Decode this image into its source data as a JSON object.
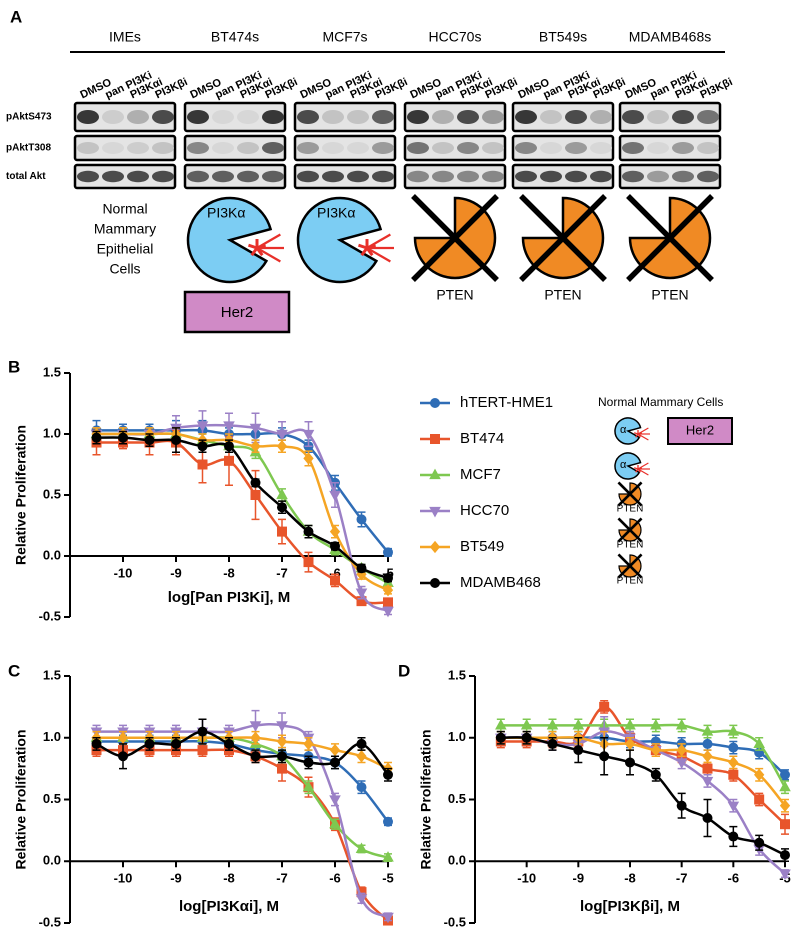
{
  "panel_a": {
    "label": "A",
    "groups": [
      "IMEs",
      "BT474s",
      "MCF7s",
      "HCC70s",
      "BT549s",
      "MDAMB468s"
    ],
    "lanes": [
      "DMSO",
      "pan PI3Ki",
      "PI3Kαi",
      "PI3Kβi"
    ],
    "rows": [
      "pAktS473",
      "pAktT308",
      "total Akt"
    ],
    "normal_lines": [
      "Normal",
      "Mammary",
      "Epithelial",
      "Cells"
    ],
    "pi3k_label": "PI3Kα",
    "pten_label": "PTEN",
    "her2_label": "Her2"
  },
  "legend_extra": {
    "title": "Normal Mammary Cells",
    "alpha": "α",
    "her2": "Her2",
    "pten": "PTEN"
  },
  "chart_data": [
    {
      "type": "line",
      "label": "B",
      "xlabel": "log[Pan PI3Ki], M",
      "ylabel": "Relative Proliferation",
      "x": [
        -10.5,
        -10,
        -9.5,
        -9,
        -8.5,
        -8,
        -7.5,
        -7,
        -6.5,
        -6,
        -5.5,
        -5
      ],
      "xlim": [
        -11,
        -5
      ],
      "xticks": [
        -10,
        -9,
        -8,
        -7,
        -6,
        -5
      ],
      "ylim": [
        -0.5,
        1.5
      ],
      "yticks": [
        -0.5,
        {
          "value": 0,
          "label": "0.0"
        },
        0.5,
        {
          "value": 1,
          "label": "1.0"
        },
        1.5
      ],
      "xaxis_cross": 0,
      "series": [
        {
          "name": "hTERT-HME1",
          "color": "#2f6db6",
          "marker": "circle",
          "values": [
            1.03,
            1.03,
            1.03,
            1.03,
            1.03,
            1.0,
            1.0,
            1.0,
            0.9,
            0.6,
            0.3,
            0.03
          ],
          "errors": [
            0.08,
            0.05,
            0.05,
            0.08,
            0.08,
            0.05,
            0.05,
            0.05,
            0.05,
            0.06,
            0.06,
            0.03
          ]
        },
        {
          "name": "BT474",
          "color": "#e8552b",
          "marker": "square",
          "values": [
            0.93,
            0.93,
            0.93,
            0.93,
            0.75,
            0.78,
            0.5,
            0.2,
            -0.05,
            -0.2,
            -0.37,
            -0.38
          ],
          "errors": [
            0.1,
            0.05,
            0.1,
            0.1,
            0.15,
            0.2,
            0.2,
            0.1,
            0.08,
            0.05,
            0.03,
            0.03
          ]
        },
        {
          "name": "MCF7",
          "color": "#7ec850",
          "marker": "triangle-up",
          "values": [
            1.0,
            1.0,
            1.0,
            1.0,
            0.95,
            0.9,
            0.85,
            0.5,
            0.2,
            0.05,
            -0.1,
            -0.22
          ],
          "errors": [
            0.05,
            0.05,
            0.05,
            0.05,
            0.05,
            0.05,
            0.05,
            0.05,
            0.05,
            0.04,
            0.03,
            0.03
          ]
        },
        {
          "name": "HCC70",
          "color": "#9b80c6",
          "marker": "triangle-down",
          "values": [
            1.0,
            1.0,
            1.0,
            1.05,
            1.07,
            1.07,
            1.05,
            1.0,
            1.0,
            0.5,
            -0.3,
            -0.45
          ],
          "errors": [
            0.05,
            0.05,
            0.05,
            0.1,
            0.12,
            0.1,
            0.12,
            0.1,
            0.1,
            0.1,
            0.05,
            0.03
          ]
        },
        {
          "name": "BT549",
          "color": "#f5a524",
          "marker": "diamond",
          "values": [
            1.0,
            1.0,
            1.0,
            1.0,
            0.95,
            0.95,
            0.9,
            0.9,
            0.8,
            0.2,
            -0.15,
            -0.28
          ],
          "errors": [
            0.05,
            0.05,
            0.05,
            0.05,
            0.05,
            0.05,
            0.05,
            0.05,
            0.06,
            0.05,
            0.04,
            0.03
          ]
        },
        {
          "name": "MDAMB468",
          "color": "#000000",
          "marker": "circle",
          "values": [
            0.97,
            0.97,
            0.95,
            0.95,
            0.9,
            0.9,
            0.6,
            0.4,
            0.2,
            0.08,
            -0.1,
            -0.18
          ],
          "errors": [
            0.05,
            0.05,
            0.05,
            0.1,
            0.05,
            0.05,
            0.03,
            0.05,
            0.05,
            0.03,
            0.03,
            0.03
          ]
        }
      ]
    },
    {
      "type": "line",
      "label": "C",
      "xlabel": "log[PI3Kαi], M",
      "ylabel": "Relative Proliferation",
      "x": [
        -10.5,
        -10,
        -9.5,
        -9,
        -8.5,
        -8,
        -7.5,
        -7,
        -6.5,
        -6,
        -5.5,
        -5
      ],
      "xlim": [
        -11,
        -5
      ],
      "xticks": [
        -10,
        -9,
        -8,
        -7,
        -6,
        -5
      ],
      "ylim": [
        -0.5,
        1.5
      ],
      "yticks": [
        -0.5,
        {
          "value": 0,
          "label": "0.0"
        },
        0.5,
        {
          "value": 1,
          "label": "1.0"
        },
        1.5
      ],
      "xaxis_cross": 0,
      "series": [
        {
          "color": "#2f6db6",
          "marker": "circle",
          "values": [
            0.97,
            0.97,
            0.97,
            0.97,
            0.97,
            0.95,
            0.9,
            0.87,
            0.85,
            0.8,
            0.6,
            0.32
          ],
          "errors": [
            0.08,
            0.05,
            0.05,
            0.05,
            0.05,
            0.05,
            0.05,
            0.05,
            0.05,
            0.05,
            0.05,
            0.03
          ]
        },
        {
          "color": "#e8552b",
          "marker": "square",
          "values": [
            0.9,
            0.9,
            0.9,
            0.9,
            0.9,
            0.9,
            0.85,
            0.75,
            0.6,
            0.3,
            -0.25,
            -0.48
          ],
          "errors": [
            0.05,
            0.05,
            0.05,
            0.05,
            0.05,
            0.05,
            0.05,
            0.1,
            0.08,
            0.05,
            0.04,
            0.03
          ]
        },
        {
          "color": "#7ec850",
          "marker": "triangle-up",
          "values": [
            1.0,
            1.0,
            1.0,
            1.0,
            1.0,
            1.0,
            0.95,
            0.85,
            0.6,
            0.3,
            0.1,
            0.03
          ],
          "errors": [
            0.05,
            0.05,
            0.05,
            0.05,
            0.05,
            0.05,
            0.05,
            0.05,
            0.05,
            0.04,
            0.03,
            0.03
          ]
        },
        {
          "color": "#9b80c6",
          "marker": "triangle-down",
          "values": [
            1.05,
            1.05,
            1.05,
            1.05,
            1.05,
            1.05,
            1.1,
            1.1,
            1.0,
            0.5,
            -0.3,
            -0.45
          ],
          "errors": [
            0.05,
            0.05,
            0.05,
            0.05,
            0.1,
            0.05,
            0.12,
            0.1,
            0.05,
            0.05,
            0.04,
            0.03
          ]
        },
        {
          "color": "#f5a524",
          "marker": "diamond",
          "values": [
            1.0,
            1.0,
            1.0,
            1.0,
            1.0,
            1.0,
            1.0,
            0.97,
            0.95,
            0.9,
            0.85,
            0.75
          ],
          "errors": [
            0.05,
            0.05,
            0.05,
            0.05,
            0.05,
            0.05,
            0.05,
            0.05,
            0.05,
            0.05,
            0.05,
            0.05
          ]
        },
        {
          "color": "#000000",
          "marker": "circle",
          "values": [
            0.95,
            0.85,
            0.95,
            0.95,
            1.05,
            0.95,
            0.85,
            0.85,
            0.8,
            0.8,
            0.95,
            0.7
          ],
          "errors": [
            0.05,
            0.1,
            0.05,
            0.05,
            0.1,
            0.05,
            0.05,
            0.05,
            0.05,
            0.05,
            0.05,
            0.05
          ]
        }
      ]
    },
    {
      "type": "line",
      "label": "D",
      "xlabel": "log[PI3Kβi], M",
      "ylabel": "Relative Proliferation",
      "x": [
        -10.5,
        -10,
        -9.5,
        -9,
        -8.5,
        -8,
        -7.5,
        -7,
        -6.5,
        -6,
        -5.5,
        -5
      ],
      "xlim": [
        -11,
        -5
      ],
      "xticks": [
        -10,
        -9,
        -8,
        -7,
        -6,
        -5
      ],
      "ylim": [
        -0.5,
        1.5
      ],
      "yticks": [
        -0.5,
        {
          "value": 0,
          "label": "0.0"
        },
        0.5,
        {
          "value": 1,
          "label": "1.0"
        },
        1.5
      ],
      "xaxis_cross": 0,
      "series": [
        {
          "color": "#2f6db6",
          "marker": "circle",
          "values": [
            1.0,
            1.0,
            1.0,
            1.0,
            1.0,
            0.97,
            0.97,
            0.95,
            0.95,
            0.92,
            0.88,
            0.7
          ],
          "errors": [
            0.05,
            0.05,
            0.05,
            0.05,
            0.05,
            0.05,
            0.05,
            0.05,
            0.05,
            0.05,
            0.05,
            0.04
          ]
        },
        {
          "color": "#e8552b",
          "marker": "square",
          "values": [
            0.97,
            0.97,
            0.97,
            0.97,
            1.25,
            1.0,
            0.9,
            0.85,
            0.75,
            0.7,
            0.5,
            0.3
          ],
          "errors": [
            0.05,
            0.05,
            0.05,
            0.05,
            0.05,
            0.05,
            0.05,
            0.05,
            0.05,
            0.05,
            0.05,
            0.08
          ]
        },
        {
          "color": "#7ec850",
          "marker": "triangle-up",
          "values": [
            1.1,
            1.1,
            1.1,
            1.1,
            1.1,
            1.1,
            1.1,
            1.1,
            1.05,
            1.05,
            0.95,
            0.6
          ],
          "errors": [
            0.05,
            0.05,
            0.05,
            0.05,
            0.05,
            0.05,
            0.05,
            0.05,
            0.05,
            0.05,
            0.05,
            0.05
          ]
        },
        {
          "color": "#9b80c6",
          "marker": "triangle-down",
          "values": [
            1.0,
            1.0,
            0.95,
            0.95,
            1.05,
            1.0,
            0.9,
            0.8,
            0.65,
            0.45,
            0.1,
            -0.1
          ],
          "errors": [
            0.05,
            0.05,
            0.05,
            0.05,
            0.12,
            0.05,
            0.05,
            0.05,
            0.05,
            0.05,
            0.05,
            0.03
          ]
        },
        {
          "color": "#f5a524",
          "marker": "diamond",
          "values": [
            1.0,
            1.0,
            1.0,
            1.0,
            0.95,
            0.95,
            0.9,
            0.9,
            0.85,
            0.8,
            0.7,
            0.45
          ],
          "errors": [
            0.05,
            0.05,
            0.05,
            0.05,
            0.1,
            0.05,
            0.05,
            0.05,
            0.05,
            0.05,
            0.05,
            0.05
          ]
        },
        {
          "color": "#000000",
          "marker": "circle",
          "values": [
            1.0,
            1.0,
            0.95,
            0.9,
            0.85,
            0.8,
            0.7,
            0.45,
            0.35,
            0.2,
            0.15,
            0.05
          ],
          "errors": [
            0.05,
            0.05,
            0.05,
            0.1,
            0.15,
            0.1,
            0.05,
            0.1,
            0.15,
            0.08,
            0.06,
            0.05
          ]
        }
      ]
    }
  ]
}
